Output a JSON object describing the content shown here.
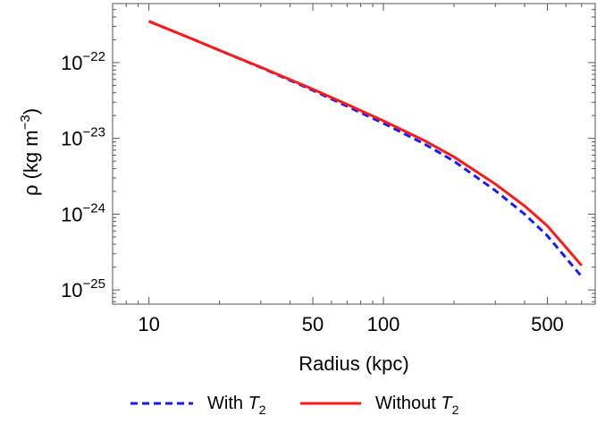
{
  "chart_data": {
    "type": "line",
    "xscale": "log",
    "yscale": "log",
    "xlabel": "Radius (kpc)",
    "ylabel": "ρ (kg m",
    "ylabel_unit_exp": "−3",
    "ylabel_close": ")",
    "xlim": [
      7,
      800
    ],
    "ylim": [
      6.5e-26,
      6e-22
    ],
    "x_ticks": [
      {
        "value": 10,
        "label": "10"
      },
      {
        "value": 50,
        "label": "50"
      },
      {
        "value": 100,
        "label": "100"
      },
      {
        "value": 500,
        "label": "500"
      }
    ],
    "y_ticks": [
      {
        "value": 1e-22,
        "base": "10",
        "exp": "−22"
      },
      {
        "value": 1e-23,
        "base": "10",
        "exp": "−23"
      },
      {
        "value": 1e-24,
        "base": "10",
        "exp": "−24"
      },
      {
        "value": 1e-25,
        "base": "10",
        "exp": "−25"
      }
    ],
    "series": [
      {
        "name": "With T₂",
        "legend_text": "With ",
        "legend_symbol": "T",
        "legend_sub": "2",
        "color": "#1a1aff",
        "style": "dashed",
        "x": [
          10,
          15,
          20,
          30,
          50,
          70,
          100,
          150,
          200,
          300,
          400,
          500,
          700
        ],
        "y": [
          3.5e-22,
          2.1e-22,
          1.45e-22,
          8.6e-23,
          4.3e-23,
          2.65e-23,
          1.58e-23,
          8.4e-24,
          5e-24,
          2.05e-24,
          1e-24,
          5.2e-25,
          1.5e-25
        ]
      },
      {
        "name": "Without T₂",
        "legend_text": "Without ",
        "legend_symbol": "T",
        "legend_sub": "2",
        "color": "#ff1a1a",
        "style": "solid",
        "x": [
          10,
          15,
          20,
          30,
          50,
          70,
          100,
          150,
          200,
          300,
          400,
          500,
          700
        ],
        "y": [
          3.5e-22,
          2.1e-22,
          1.45e-22,
          8.7e-23,
          4.45e-23,
          2.8e-23,
          1.7e-23,
          9.3e-24,
          5.7e-24,
          2.5e-24,
          1.28e-24,
          7e-25,
          2.1e-25
        ]
      }
    ],
    "legend_position": "bottom-center",
    "grid": false
  }
}
